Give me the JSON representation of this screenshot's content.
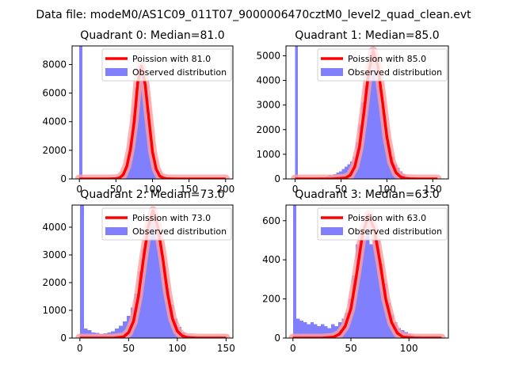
{
  "figure_title": "Data file: modeM0/AS1C09_011T07_9000006470cztM0_level2_quad_clean.evt",
  "colors": {
    "histogram": "#8080ff",
    "poisson": "#ff0000",
    "poisson_glow": "#ff9e9e"
  },
  "chart_data": [
    {
      "type": "bar",
      "title": "Quadrant 0: Median=81.0",
      "xlim": [
        -10,
        210
      ],
      "ylim": [
        0,
        9300
      ],
      "xticks": [
        0,
        50,
        100,
        150,
        200
      ],
      "yticks": [
        0,
        2000,
        4000,
        6000,
        8000
      ],
      "legend": {
        "position": "top-right",
        "entries": [
          "Poission with 81.0",
          "Observed distribution"
        ]
      },
      "bin_width": 4,
      "hist_x": [
        0,
        4,
        8,
        12,
        16,
        20,
        24,
        28,
        32,
        36,
        40,
        44,
        48,
        52,
        56,
        60,
        64,
        68,
        72,
        76,
        80,
        84,
        88,
        92,
        96,
        100,
        104,
        108,
        112,
        116,
        120,
        124,
        128,
        132,
        136,
        140,
        144,
        148,
        152,
        156,
        160,
        164,
        168,
        172,
        176,
        180,
        184,
        188,
        192,
        196
      ],
      "hist_y": [
        9300,
        15,
        10,
        10,
        10,
        10,
        10,
        10,
        10,
        15,
        20,
        30,
        50,
        100,
        200,
        500,
        1200,
        2800,
        4500,
        6400,
        7900,
        7800,
        6400,
        4300,
        2500,
        1300,
        600,
        300,
        150,
        80,
        50,
        30,
        20,
        15,
        10,
        10,
        5,
        5,
        5,
        5,
        5,
        5,
        5,
        5,
        5,
        5,
        5,
        5,
        5,
        5
      ],
      "poisson_x": [
        0,
        40,
        50,
        55,
        60,
        65,
        70,
        75,
        80,
        85,
        90,
        95,
        100,
        105,
        110,
        115,
        120,
        130,
        160,
        200
      ],
      "poisson_y": [
        0,
        0,
        20,
        80,
        300,
        900,
        2100,
        4000,
        6800,
        7900,
        6600,
        4200,
        1900,
        700,
        200,
        60,
        10,
        0,
        0,
        0
      ]
    },
    {
      "type": "bar",
      "title": "Quadrant 1: Median=85.0",
      "xlim": [
        -10,
        167
      ],
      "ylim": [
        0,
        5400
      ],
      "xticks": [
        0,
        50,
        100,
        150
      ],
      "yticks": [
        0,
        1000,
        2000,
        3000,
        4000,
        5000
      ],
      "legend": {
        "position": "top-right",
        "entries": [
          "Poission with 85.0",
          "Observed distribution"
        ]
      },
      "bin_width": 3,
      "hist_x": [
        0,
        3,
        6,
        9,
        12,
        15,
        18,
        21,
        24,
        27,
        30,
        33,
        36,
        39,
        42,
        45,
        48,
        51,
        54,
        57,
        60,
        63,
        66,
        69,
        72,
        75,
        78,
        81,
        84,
        87,
        90,
        93,
        96,
        99,
        102,
        105,
        108,
        111,
        114,
        117,
        120,
        123,
        126,
        129,
        132,
        135,
        138,
        141,
        144,
        147,
        150,
        153
      ],
      "hist_y": [
        5400,
        60,
        40,
        50,
        30,
        20,
        40,
        30,
        50,
        60,
        40,
        100,
        150,
        150,
        200,
        250,
        300,
        400,
        500,
        600,
        700,
        900,
        1500,
        2200,
        3100,
        3800,
        4500,
        5100,
        4800,
        4400,
        3800,
        3000,
        2400,
        1500,
        1200,
        900,
        600,
        450,
        300,
        200,
        120,
        80,
        50,
        30,
        20,
        20,
        10,
        10,
        10,
        5,
        5,
        5
      ],
      "poisson_x": [
        0,
        40,
        55,
        60,
        65,
        70,
        75,
        80,
        85,
        90,
        95,
        100,
        105,
        110,
        115,
        120,
        125,
        135,
        155
      ],
      "poisson_y": [
        0,
        0,
        40,
        150,
        500,
        1300,
        2700,
        4300,
        5200,
        4600,
        3200,
        1700,
        700,
        250,
        80,
        20,
        5,
        0,
        0
      ]
    },
    {
      "type": "bar",
      "title": "Quadrant 2: Median=73.0",
      "xlim": [
        -8,
        157
      ],
      "ylim": [
        0,
        4800
      ],
      "xticks": [
        0,
        50,
        100,
        150
      ],
      "yticks": [
        0,
        1000,
        2000,
        3000,
        4000
      ],
      "legend": {
        "position": "top-right",
        "entries": [
          "Poission with 73.0",
          "Observed distribution"
        ]
      },
      "bin_width": 4,
      "hist_x": [
        0,
        4,
        8,
        12,
        16,
        20,
        24,
        28,
        32,
        36,
        40,
        44,
        48,
        52,
        56,
        60,
        64,
        68,
        72,
        76,
        80,
        84,
        88,
        92,
        96,
        100,
        104,
        108,
        112,
        116,
        120,
        124,
        128,
        132,
        136,
        140,
        144
      ],
      "hist_y": [
        4800,
        340,
        290,
        200,
        180,
        150,
        170,
        200,
        250,
        350,
        450,
        600,
        800,
        1100,
        1600,
        2400,
        3200,
        3900,
        4400,
        4100,
        3400,
        2600,
        1800,
        1200,
        700,
        400,
        200,
        100,
        60,
        30,
        20,
        10,
        5,
        5,
        5,
        5,
        5
      ],
      "poisson_x": [
        0,
        35,
        45,
        50,
        55,
        60,
        65,
        70,
        75,
        80,
        85,
        90,
        95,
        100,
        105,
        110,
        120,
        150
      ],
      "poisson_y": [
        0,
        0,
        50,
        200,
        600,
        1500,
        2800,
        4000,
        4600,
        4000,
        2900,
        1600,
        700,
        250,
        80,
        20,
        0,
        0
      ]
    },
    {
      "type": "bar",
      "title": "Quadrant 3: Median=63.0",
      "xlim": [
        -6,
        134
      ],
      "ylim": [
        0,
        680
      ],
      "xticks": [
        0,
        50,
        100
      ],
      "yticks": [
        0,
        200,
        400,
        600
      ],
      "legend": {
        "position": "top-right",
        "entries": [
          "Poission with 63.0",
          "Observed distribution"
        ]
      },
      "bin_width": 3,
      "hist_x": [
        0,
        3,
        6,
        9,
        12,
        15,
        18,
        21,
        24,
        27,
        30,
        33,
        36,
        39,
        42,
        45,
        48,
        51,
        54,
        57,
        60,
        63,
        66,
        69,
        72,
        75,
        78,
        81,
        84,
        87,
        90,
        93,
        96,
        99,
        102,
        105,
        108,
        111,
        114,
        117,
        120,
        123,
        126
      ],
      "hist_y": [
        680,
        100,
        90,
        80,
        70,
        80,
        70,
        60,
        70,
        60,
        50,
        70,
        60,
        80,
        100,
        130,
        200,
        320,
        480,
        560,
        520,
        620,
        480,
        560,
        500,
        380,
        280,
        180,
        120,
        80,
        50,
        40,
        30,
        20,
        15,
        10,
        10,
        5,
        5,
        5,
        5,
        5,
        5
      ],
      "poisson_x": [
        0,
        25,
        35,
        40,
        45,
        50,
        55,
        60,
        65,
        70,
        75,
        80,
        85,
        90,
        95,
        105,
        128
      ],
      "poisson_y": [
        0,
        0,
        5,
        20,
        60,
        150,
        330,
        530,
        630,
        560,
        390,
        200,
        80,
        25,
        5,
        0,
        0
      ]
    }
  ]
}
